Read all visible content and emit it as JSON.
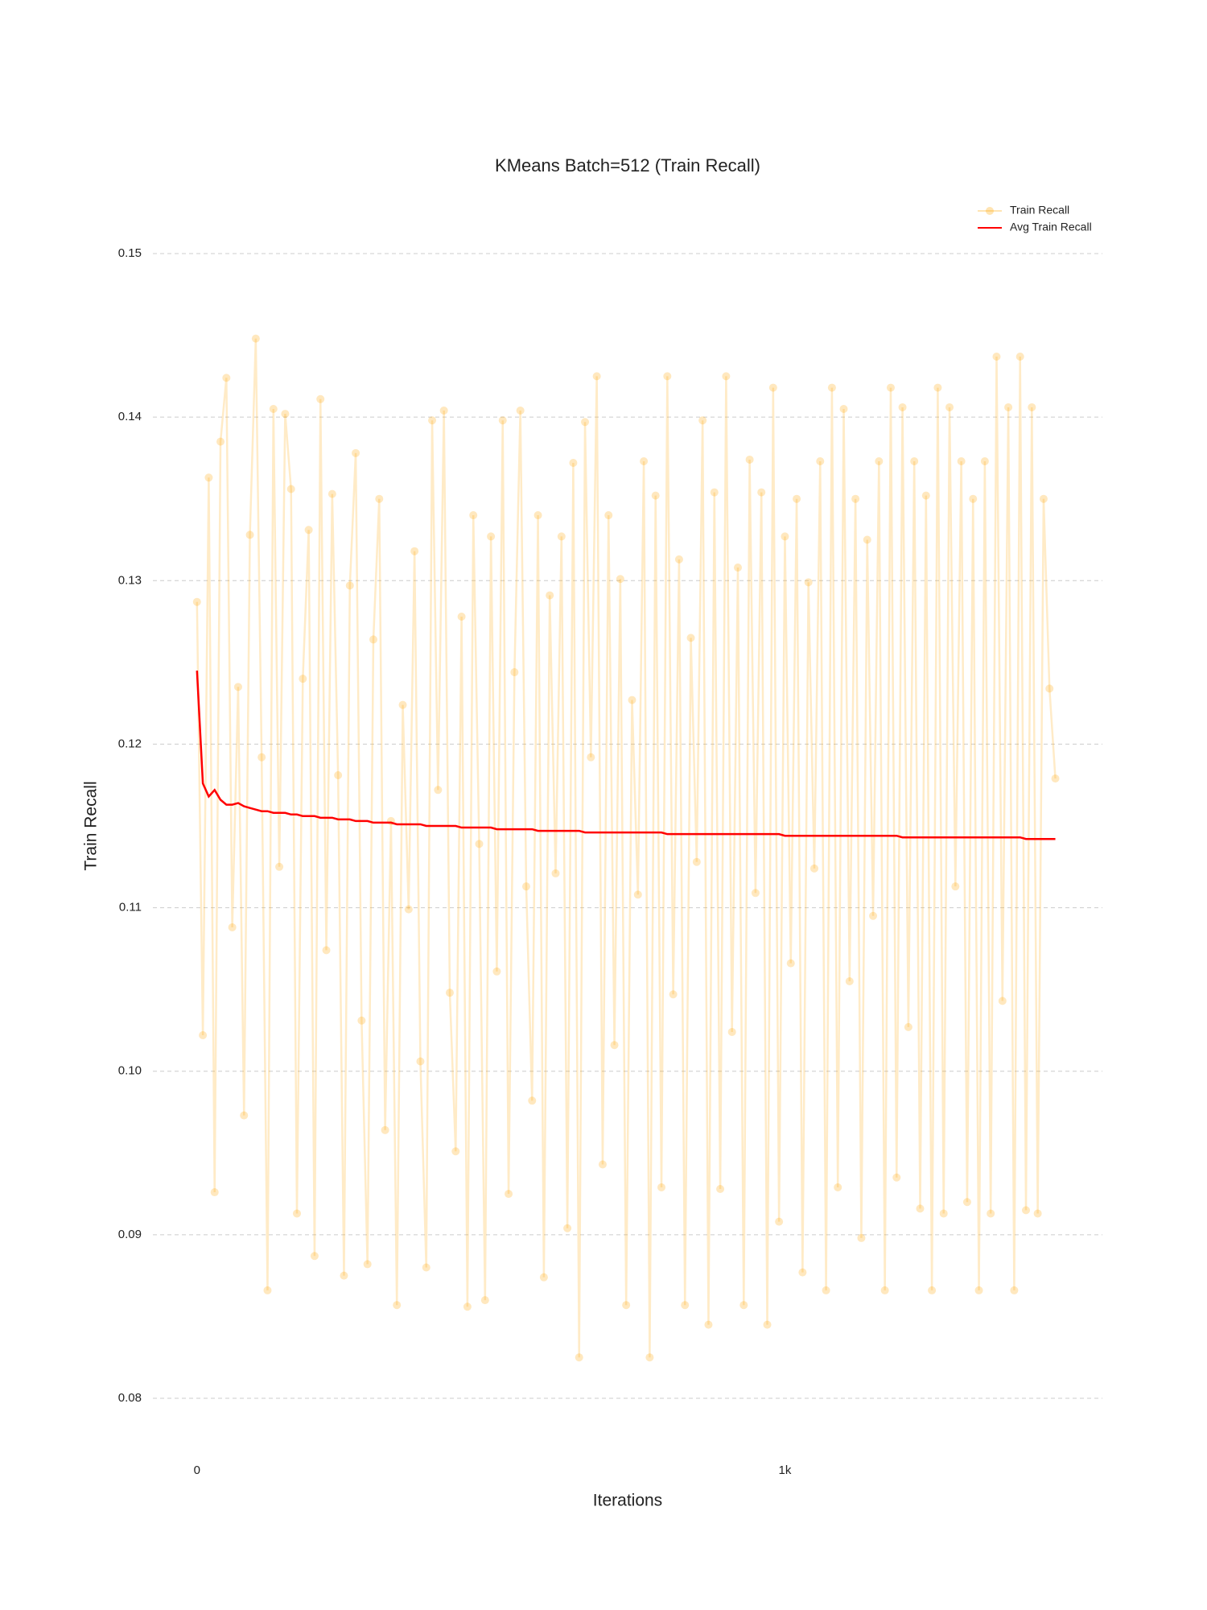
{
  "chart_data": {
    "type": "line",
    "title": "KMeans Batch=512 (Train Recall)",
    "x_label": "Iterations",
    "y_label": "Train Recall",
    "x": [
      0,
      10,
      20,
      30,
      40,
      50,
      60,
      70,
      80,
      90,
      100,
      110,
      120,
      130,
      140,
      150,
      160,
      170,
      180,
      190,
      200,
      210,
      220,
      230,
      240,
      250,
      260,
      270,
      280,
      290,
      300,
      310,
      320,
      330,
      340,
      350,
      360,
      370,
      380,
      390,
      400,
      410,
      420,
      430,
      440,
      450,
      460,
      470,
      480,
      490,
      500,
      510,
      520,
      530,
      540,
      550,
      560,
      570,
      580,
      590,
      600,
      610,
      620,
      630,
      640,
      650,
      660,
      670,
      680,
      690,
      700,
      710,
      720,
      730,
      740,
      750,
      760,
      770,
      780,
      790,
      800,
      810,
      820,
      830,
      840,
      850,
      860,
      870,
      880,
      890,
      900,
      910,
      920,
      930,
      940,
      950,
      960,
      970,
      980,
      990,
      1000,
      1010,
      1020,
      1030,
      1040,
      1050,
      1060,
      1070,
      1080,
      1090,
      1100,
      1110,
      1120,
      1130,
      1140,
      1150,
      1160,
      1170,
      1180,
      1190,
      1200,
      1210,
      1220,
      1230,
      1240,
      1250,
      1260,
      1270,
      1280,
      1290,
      1300,
      1310,
      1320,
      1330,
      1340,
      1350,
      1360,
      1370,
      1380,
      1390,
      1400,
      1410,
      1420,
      1430,
      1440,
      1450,
      1460
    ],
    "series": [
      {
        "name": "Train Recall",
        "color": "#ffa500",
        "markers": true,
        "values": [
          0.1287,
          0.1022,
          0.1363,
          0.0926,
          0.1385,
          0.1424,
          0.1088,
          0.1235,
          0.0973,
          0.1328,
          0.1448,
          0.1192,
          0.0866,
          0.1405,
          0.1125,
          0.1402,
          0.1356,
          0.0913,
          0.124,
          0.1331,
          0.0887,
          0.1411,
          0.1074,
          0.1353,
          0.1181,
          0.0875,
          0.1297,
          0.1378,
          0.1031,
          0.0882,
          0.1264,
          0.135,
          0.0964,
          0.1153,
          0.0857,
          0.1224,
          0.1099,
          0.1318,
          0.1006,
          0.088,
          0.1398,
          0.1172,
          0.1404,
          0.1048,
          0.0951,
          0.1278,
          0.0856,
          0.134,
          0.1139,
          0.086,
          0.1327,
          0.1061,
          0.1398,
          0.0925,
          0.1244,
          0.1404,
          0.1113,
          0.0982,
          0.134,
          0.0874,
          0.1291,
          0.1121,
          0.1327,
          0.0904,
          0.1372,
          0.0825,
          0.1397,
          0.1192,
          0.1425,
          0.0943,
          0.134,
          0.1016,
          0.1301,
          0.0857,
          0.1227,
          0.1108,
          0.1373,
          0.0825,
          0.1352,
          0.0929,
          0.1425,
          0.1047,
          0.1313,
          0.0857,
          0.1265,
          0.1128,
          0.1398,
          0.0845,
          0.1354,
          0.0928,
          0.1425,
          0.1024,
          0.1308,
          0.0857,
          0.1374,
          0.1109,
          0.1354,
          0.0845,
          0.1418,
          0.0908,
          0.1327,
          0.1066,
          0.135,
          0.0877,
          0.1299,
          0.1124,
          0.1373,
          0.0866,
          0.1418,
          0.0929,
          0.1405,
          0.1055,
          0.135,
          0.0898,
          0.1325,
          0.1095,
          0.1373,
          0.0866,
          0.1418,
          0.0935,
          0.1406,
          0.1027,
          0.1373,
          0.0916,
          0.1352,
          0.0866,
          0.1418,
          0.0913,
          0.1406,
          0.1113,
          0.1373,
          0.092,
          0.135,
          0.0866,
          0.1373,
          0.0913,
          0.1437,
          0.1043,
          0.1406,
          0.0866,
          0.1437,
          0.0915,
          0.1406,
          0.0913,
          0.135,
          0.1234,
          0.1179
        ]
      },
      {
        "name": "Avg Train Recall",
        "color": "#ff0000",
        "markers": false,
        "values": [
          0.1245,
          0.1176,
          0.1168,
          0.1172,
          0.1166,
          0.1163,
          0.1163,
          0.1164,
          0.1162,
          0.1161,
          0.116,
          0.1159,
          0.1159,
          0.1158,
          0.1158,
          0.1158,
          0.1157,
          0.1157,
          0.1156,
          0.1156,
          0.1156,
          0.1155,
          0.1155,
          0.1155,
          0.1154,
          0.1154,
          0.1154,
          0.1153,
          0.1153,
          0.1153,
          0.1152,
          0.1152,
          0.1152,
          0.1152,
          0.1151,
          0.1151,
          0.1151,
          0.1151,
          0.1151,
          0.115,
          0.115,
          0.115,
          0.115,
          0.115,
          0.115,
          0.1149,
          0.1149,
          0.1149,
          0.1149,
          0.1149,
          0.1149,
          0.1148,
          0.1148,
          0.1148,
          0.1148,
          0.1148,
          0.1148,
          0.1148,
          0.1147,
          0.1147,
          0.1147,
          0.1147,
          0.1147,
          0.1147,
          0.1147,
          0.1147,
          0.1146,
          0.1146,
          0.1146,
          0.1146,
          0.1146,
          0.1146,
          0.1146,
          0.1146,
          0.1146,
          0.1146,
          0.1146,
          0.1146,
          0.1146,
          0.1146,
          0.1145,
          0.1145,
          0.1145,
          0.1145,
          0.1145,
          0.1145,
          0.1145,
          0.1145,
          0.1145,
          0.1145,
          0.1145,
          0.1145,
          0.1145,
          0.1145,
          0.1145,
          0.1145,
          0.1145,
          0.1145,
          0.1145,
          0.1145,
          0.1144,
          0.1144,
          0.1144,
          0.1144,
          0.1144,
          0.1144,
          0.1144,
          0.1144,
          0.1144,
          0.1144,
          0.1144,
          0.1144,
          0.1144,
          0.1144,
          0.1144,
          0.1144,
          0.1144,
          0.1144,
          0.1144,
          0.1144,
          0.1143,
          0.1143,
          0.1143,
          0.1143,
          0.1143,
          0.1143,
          0.1143,
          0.1143,
          0.1143,
          0.1143,
          0.1143,
          0.1143,
          0.1143,
          0.1143,
          0.1143,
          0.1143,
          0.1143,
          0.1143,
          0.1143,
          0.1143,
          0.1143,
          0.1142,
          0.1142,
          0.1142,
          0.1142,
          0.1142,
          0.1142
        ]
      }
    ],
    "xlim": [
      -75,
      1540
    ],
    "ylim": [
      0.08,
      0.15
    ],
    "xticks": [
      0,
      {
        "value": 1000,
        "label": "1k"
      }
    ],
    "yticks": [
      0.08,
      0.09,
      {
        "value": 0.1,
        "label": "0.10"
      },
      0.11,
      0.12,
      0.13,
      0.14,
      0.15
    ],
    "grid": true,
    "legend": "top-right"
  }
}
